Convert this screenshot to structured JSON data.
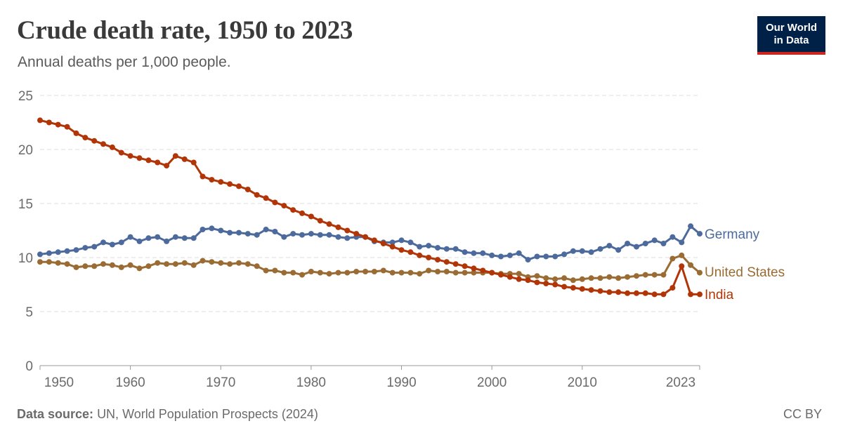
{
  "header": {
    "title": "Crude death rate, 1950 to 2023",
    "subtitle": "Annual deaths per 1,000 people."
  },
  "logo": {
    "line1": "Our World",
    "line2": "in Data",
    "bg_color": "#002147",
    "accent_color": "#ce261e"
  },
  "footer": {
    "source_label": "Data source:",
    "source_text": "UN, World Population Prospects (2024)",
    "license": "CC BY"
  },
  "chart_data": {
    "type": "line",
    "title": "Crude death rate, 1950 to 2023",
    "subtitle": "Annual deaths per 1,000 people.",
    "xlabel": "",
    "ylabel": "",
    "xlim": [
      1950,
      2023
    ],
    "ylim": [
      0,
      25
    ],
    "x_ticks": [
      1950,
      1960,
      1970,
      1980,
      1990,
      2000,
      2010,
      2023
    ],
    "x_tick_labels": [
      "1950",
      "1960",
      "1970",
      "1980",
      "1990",
      "2000",
      "2010",
      "2023"
    ],
    "y_ticks": [
      0,
      5,
      10,
      15,
      20,
      25
    ],
    "y_tick_labels": [
      "0",
      "5",
      "10",
      "15",
      "20",
      "25"
    ],
    "grid": "horizontal dashed",
    "legend": "inline labels at right end of lines",
    "x": [
      1950,
      1951,
      1952,
      1953,
      1954,
      1955,
      1956,
      1957,
      1958,
      1959,
      1960,
      1961,
      1962,
      1963,
      1964,
      1965,
      1966,
      1967,
      1968,
      1969,
      1970,
      1971,
      1972,
      1973,
      1974,
      1975,
      1976,
      1977,
      1978,
      1979,
      1980,
      1981,
      1982,
      1983,
      1984,
      1985,
      1986,
      1987,
      1988,
      1989,
      1990,
      1991,
      1992,
      1993,
      1994,
      1995,
      1996,
      1997,
      1998,
      1999,
      2000,
      2001,
      2002,
      2003,
      2004,
      2005,
      2006,
      2007,
      2008,
      2009,
      2010,
      2011,
      2012,
      2013,
      2014,
      2015,
      2016,
      2017,
      2018,
      2019,
      2020,
      2021,
      2022,
      2023
    ],
    "series": [
      {
        "name": "Germany",
        "color": "#4c6a9c",
        "values": [
          10.3,
          10.4,
          10.5,
          10.6,
          10.7,
          10.9,
          11.0,
          11.4,
          11.2,
          11.4,
          11.9,
          11.5,
          11.8,
          11.9,
          11.5,
          11.9,
          11.8,
          11.8,
          12.6,
          12.7,
          12.5,
          12.3,
          12.3,
          12.2,
          12.1,
          12.6,
          12.4,
          11.9,
          12.2,
          12.1,
          12.2,
          12.1,
          12.1,
          11.9,
          11.8,
          11.9,
          11.9,
          11.5,
          11.4,
          11.4,
          11.6,
          11.4,
          11.0,
          11.1,
          10.9,
          10.8,
          10.8,
          10.5,
          10.4,
          10.4,
          10.2,
          10.1,
          10.2,
          10.4,
          9.8,
          10.1,
          10.1,
          10.1,
          10.3,
          10.6,
          10.6,
          10.5,
          10.8,
          11.1,
          10.7,
          11.3,
          11.0,
          11.3,
          11.6,
          11.3,
          11.9,
          11.4,
          12.9,
          12.2
        ]
      },
      {
        "name": "United States",
        "color": "#9a6b32",
        "values": [
          9.6,
          9.6,
          9.5,
          9.4,
          9.1,
          9.2,
          9.2,
          9.4,
          9.3,
          9.1,
          9.3,
          9.0,
          9.2,
          9.5,
          9.4,
          9.4,
          9.5,
          9.3,
          9.7,
          9.6,
          9.5,
          9.4,
          9.5,
          9.4,
          9.2,
          8.8,
          8.8,
          8.6,
          8.6,
          8.4,
          8.7,
          8.6,
          8.5,
          8.6,
          8.6,
          8.7,
          8.7,
          8.7,
          8.8,
          8.6,
          8.6,
          8.6,
          8.5,
          8.8,
          8.7,
          8.7,
          8.6,
          8.6,
          8.6,
          8.6,
          8.6,
          8.5,
          8.5,
          8.5,
          8.2,
          8.3,
          8.1,
          8.0,
          8.1,
          7.9,
          8.0,
          8.1,
          8.1,
          8.2,
          8.1,
          8.2,
          8.3,
          8.4,
          8.4,
          8.4,
          9.9,
          10.2,
          9.3,
          8.6
        ]
      },
      {
        "name": "India",
        "color": "#b13507",
        "values": [
          22.7,
          22.5,
          22.3,
          22.1,
          21.5,
          21.1,
          20.8,
          20.5,
          20.2,
          19.7,
          19.4,
          19.2,
          19.0,
          18.8,
          18.5,
          19.4,
          19.1,
          18.8,
          17.5,
          17.2,
          17.0,
          16.8,
          16.6,
          16.3,
          15.8,
          15.5,
          15.1,
          14.8,
          14.4,
          14.1,
          13.8,
          13.4,
          13.1,
          12.8,
          12.5,
          12.2,
          11.9,
          11.6,
          11.3,
          11.0,
          10.7,
          10.5,
          10.2,
          10.0,
          9.8,
          9.6,
          9.4,
          9.2,
          9.0,
          8.8,
          8.6,
          8.4,
          8.2,
          8.0,
          7.9,
          7.7,
          7.6,
          7.5,
          7.3,
          7.2,
          7.1,
          7.0,
          6.9,
          6.8,
          6.8,
          6.7,
          6.7,
          6.7,
          6.6,
          6.6,
          7.2,
          9.2,
          6.6,
          6.6
        ]
      }
    ]
  }
}
